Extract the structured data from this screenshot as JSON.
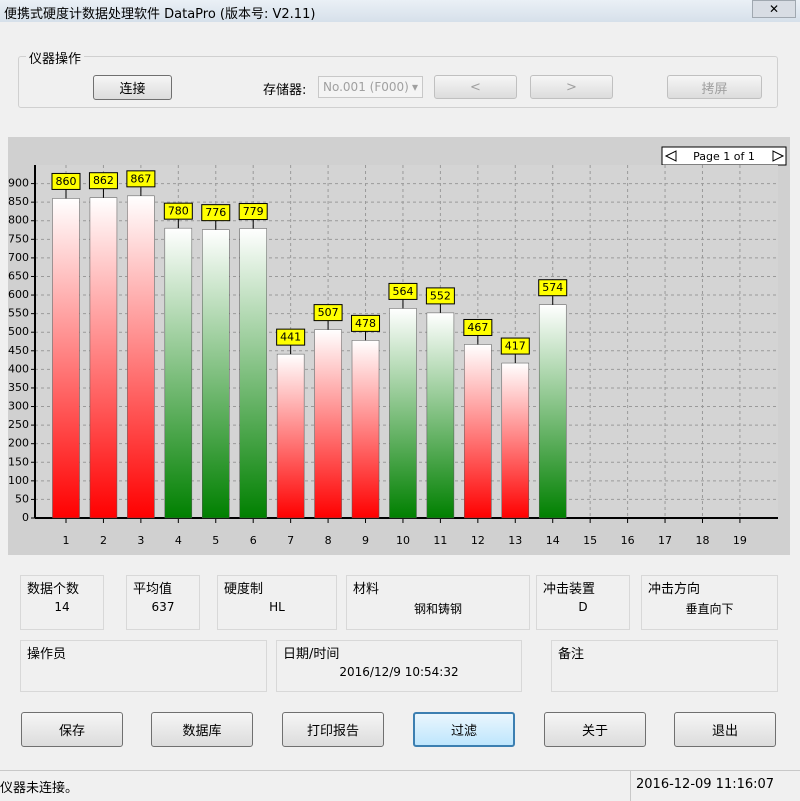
{
  "window": {
    "title": "便携式硬度计数据处理软件 DataPro (版本号: V2.11)"
  },
  "instrument": {
    "group_title": "仪器操作",
    "connect": "连接",
    "storage_label": "存储器:",
    "storage_value": "No.001 (F000)",
    "prev": "<",
    "next": ">",
    "screenshot": "拷屏"
  },
  "chart_data": {
    "type": "bar",
    "pager": "Page 1 of 1",
    "categories": [
      1,
      2,
      3,
      4,
      5,
      6,
      7,
      8,
      9,
      10,
      11,
      12,
      13,
      14,
      15,
      16,
      17,
      18,
      19
    ],
    "values": [
      860,
      862,
      867,
      780,
      776,
      779,
      441,
      507,
      478,
      564,
      552,
      467,
      417,
      574,
      null,
      null,
      null,
      null,
      null
    ],
    "colors": [
      "#ff0000",
      "#ff0000",
      "#ff0000",
      "#008000",
      "#008000",
      "#008000",
      "#ff0000",
      "#ff0000",
      "#ff0000",
      "#008000",
      "#008000",
      "#ff0000",
      "#ff0000",
      "#008000",
      null,
      null,
      null,
      null,
      null
    ],
    "ylim": [
      0,
      950
    ],
    "yticks": [
      0,
      50,
      100,
      150,
      200,
      250,
      300,
      350,
      400,
      450,
      500,
      550,
      600,
      650,
      700,
      750,
      800,
      850,
      900
    ],
    "grid": true
  },
  "info": {
    "count_label": "数据个数",
    "count": 14,
    "mean_label": "平均值",
    "mean": 637,
    "scale_label": "硬度制",
    "scale": "HL",
    "material_label": "材料",
    "material": "钢和铸钢",
    "device_label": "冲击装置",
    "device": "D",
    "direction_label": "冲击方向",
    "direction": "垂直向下",
    "operator_label": "操作员",
    "datetime_label": "日期/时间",
    "datetime": "2016/12/9 10:54:32",
    "remark_label": "备注"
  },
  "buttons": [
    "保存",
    "数据库",
    "打印报告",
    "过滤",
    "关于",
    "退出"
  ],
  "status": {
    "message": "仪器未连接。",
    "clock": "2016-12-09 11:16:07"
  }
}
